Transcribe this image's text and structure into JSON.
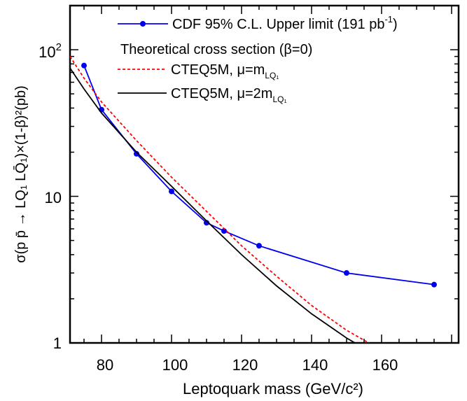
{
  "chart_data": {
    "type": "line",
    "xlabel": "Leptoquark mass (GeV/c²)",
    "ylabel_text": "σ(p p̄ → LQ₁ LQ̄₁)×(1-β)²(pb)",
    "xlim": [
      71,
      182
    ],
    "ylim": [
      1,
      200
    ],
    "yscale": "log",
    "x_ticks": [
      80,
      100,
      120,
      140,
      160
    ],
    "y_ticks": [
      {
        "value": 1,
        "label": "1"
      },
      {
        "value": 10,
        "label": "10"
      },
      {
        "value": 100,
        "label": "10",
        "sup": "2"
      }
    ],
    "legend": {
      "title": "Theoretical cross section (β=0)",
      "entries": [
        {
          "text": "CDF 95% C.L. Upper limit (191 pb",
          "sup": "-1",
          "tail": ")"
        },
        {
          "text": "CTEQ5M, μ=m",
          "sub": "LQ₁"
        },
        {
          "text": "CTEQ5M, μ=2m",
          "sub": "LQ₁"
        }
      ]
    },
    "series": [
      {
        "style": "line-markers",
        "color": "#0000ee",
        "x": [
          75,
          80,
          90,
          100,
          110,
          115,
          125,
          150,
          175
        ],
        "y": [
          78,
          39,
          19.5,
          10.8,
          6.6,
          5.8,
          4.6,
          3.0,
          2.5
        ]
      },
      {
        "style": "dashed",
        "color": "#ff0000",
        "x": [
          71,
          75,
          80,
          90,
          100,
          110,
          120,
          130,
          140,
          150,
          158
        ],
        "y": [
          90,
          64,
          44,
          24,
          13.5,
          7.9,
          4.6,
          2.85,
          1.8,
          1.22,
          0.95
        ]
      },
      {
        "style": "solid",
        "color": "#000000",
        "x": [
          71,
          75,
          80,
          90,
          100,
          110,
          120,
          130,
          140,
          150,
          155
        ],
        "y": [
          75,
          54,
          37,
          20,
          11.7,
          6.8,
          4.0,
          2.45,
          1.58,
          1.08,
          0.92
        ]
      }
    ]
  }
}
